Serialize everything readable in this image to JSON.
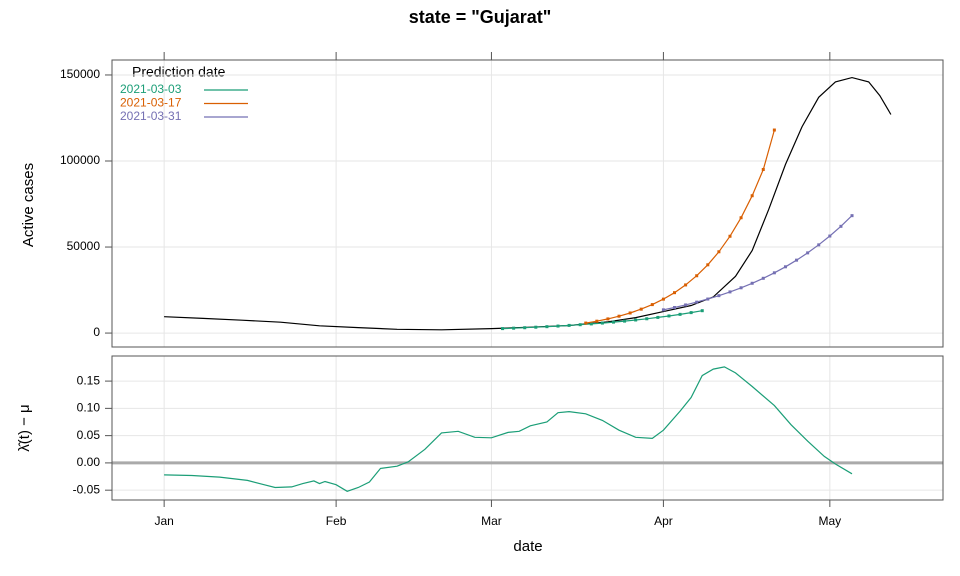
{
  "chart_data": [
    {
      "type": "line",
      "title": "state = \"Gujarat\"",
      "y_label": "Active cases",
      "legend_title": "Prediction date",
      "legend": "top-left",
      "grid": true,
      "xlim": [
        -9.4,
        140.4
      ],
      "xticks": [
        0,
        31,
        59,
        90,
        120
      ],
      "ylim": [
        -8100,
        158700
      ],
      "yticks": [
        0,
        50000,
        100000,
        150000
      ],
      "series": [
        {
          "color": "#000000",
          "points": false,
          "x": [
            0,
            7,
            14,
            21,
            28,
            35,
            42,
            50,
            59,
            66,
            73,
            80,
            85,
            90,
            95,
            99,
            103,
            106,
            109,
            112,
            115,
            118,
            121,
            124,
            127,
            129,
            131
          ],
          "values": [
            9500,
            8500,
            7500,
            6300,
            4200,
            3200,
            2200,
            1900,
            2600,
            3400,
            4400,
            6500,
            9000,
            12500,
            16000,
            21000,
            33000,
            48000,
            72000,
            98000,
            120000,
            137000,
            146000,
            148500,
            146000,
            138000,
            127000
          ]
        },
        {
          "name": "2021-03-03",
          "color": "#1b9e77",
          "points": true,
          "x": [
            61,
            63,
            65,
            67,
            69,
            71,
            73,
            75,
            77,
            79,
            81,
            83,
            85,
            87,
            89,
            91,
            93,
            95,
            97
          ],
          "values": [
            2600,
            2840,
            3110,
            3400,
            3720,
            4070,
            4450,
            4860,
            5320,
            5810,
            6360,
            6950,
            7600,
            8310,
            9090,
            9940,
            10870,
            11890,
            13000
          ]
        },
        {
          "name": "2021-03-17",
          "color": "#d95f02",
          "points": true,
          "x": [
            76,
            78,
            80,
            82,
            84,
            86,
            88,
            90,
            92,
            94,
            96,
            98,
            100,
            102,
            104,
            106,
            108,
            110
          ],
          "values": [
            5800,
            6900,
            8230,
            9800,
            11670,
            13900,
            16550,
            19720,
            23480,
            27970,
            33310,
            39670,
            47250,
            56270,
            67020,
            79820,
            95070,
            118000
          ]
        },
        {
          "name": "2021-03-31",
          "color": "#7570b3",
          "points": true,
          "x": [
            90,
            92,
            94,
            96,
            98,
            100,
            102,
            104,
            106,
            108,
            110,
            112,
            114,
            116,
            118,
            120,
            122,
            124
          ],
          "values": [
            13500,
            14850,
            16340,
            17970,
            19770,
            21740,
            23920,
            26310,
            28940,
            31830,
            35020,
            38520,
            42370,
            46610,
            51270,
            56390,
            62030,
            68240
          ]
        }
      ]
    },
    {
      "type": "line",
      "x_label": "date",
      "y_label": "λ̂(t) − μ",
      "grid": true,
      "hline": 0,
      "xlim": [
        -9.4,
        140.4
      ],
      "xticks": [
        {
          "value": 0,
          "label": "Jan"
        },
        {
          "value": 31,
          "label": "Feb"
        },
        {
          "value": 59,
          "label": "Mar"
        },
        {
          "value": 90,
          "label": "Apr"
        },
        {
          "value": 120,
          "label": "May"
        }
      ],
      "ylim": [
        -0.068,
        0.196
      ],
      "yticks": [
        -0.05,
        {
          "value": 0,
          "label": "0.00"
        },
        0.05,
        {
          "value": 0.1,
          "label": "0.10"
        },
        0.15
      ],
      "series": [
        {
          "color": "#1b9e77",
          "points": false,
          "x": [
            0,
            5,
            10,
            15,
            18,
            20,
            23,
            25,
            27,
            28,
            29,
            31,
            33,
            35,
            37,
            39,
            42,
            44,
            47,
            50,
            53,
            56,
            59,
            62,
            64,
            66,
            69,
            71,
            73,
            76,
            79,
            82,
            85,
            88,
            90,
            93,
            95,
            97,
            99,
            101,
            103,
            106,
            110,
            113,
            116,
            119,
            121,
            124
          ],
          "values": [
            -0.022,
            -0.023,
            -0.026,
            -0.032,
            -0.04,
            -0.045,
            -0.044,
            -0.038,
            -0.033,
            -0.038,
            -0.034,
            -0.04,
            -0.052,
            -0.045,
            -0.035,
            -0.01,
            -0.006,
            0.002,
            0.025,
            0.055,
            0.058,
            0.047,
            0.046,
            0.056,
            0.058,
            0.068,
            0.075,
            0.092,
            0.094,
            0.09,
            0.078,
            0.06,
            0.047,
            0.045,
            0.06,
            0.095,
            0.12,
            0.16,
            0.172,
            0.176,
            0.165,
            0.14,
            0.105,
            0.07,
            0.04,
            0.012,
            -0.002,
            -0.02
          ]
        }
      ]
    }
  ]
}
